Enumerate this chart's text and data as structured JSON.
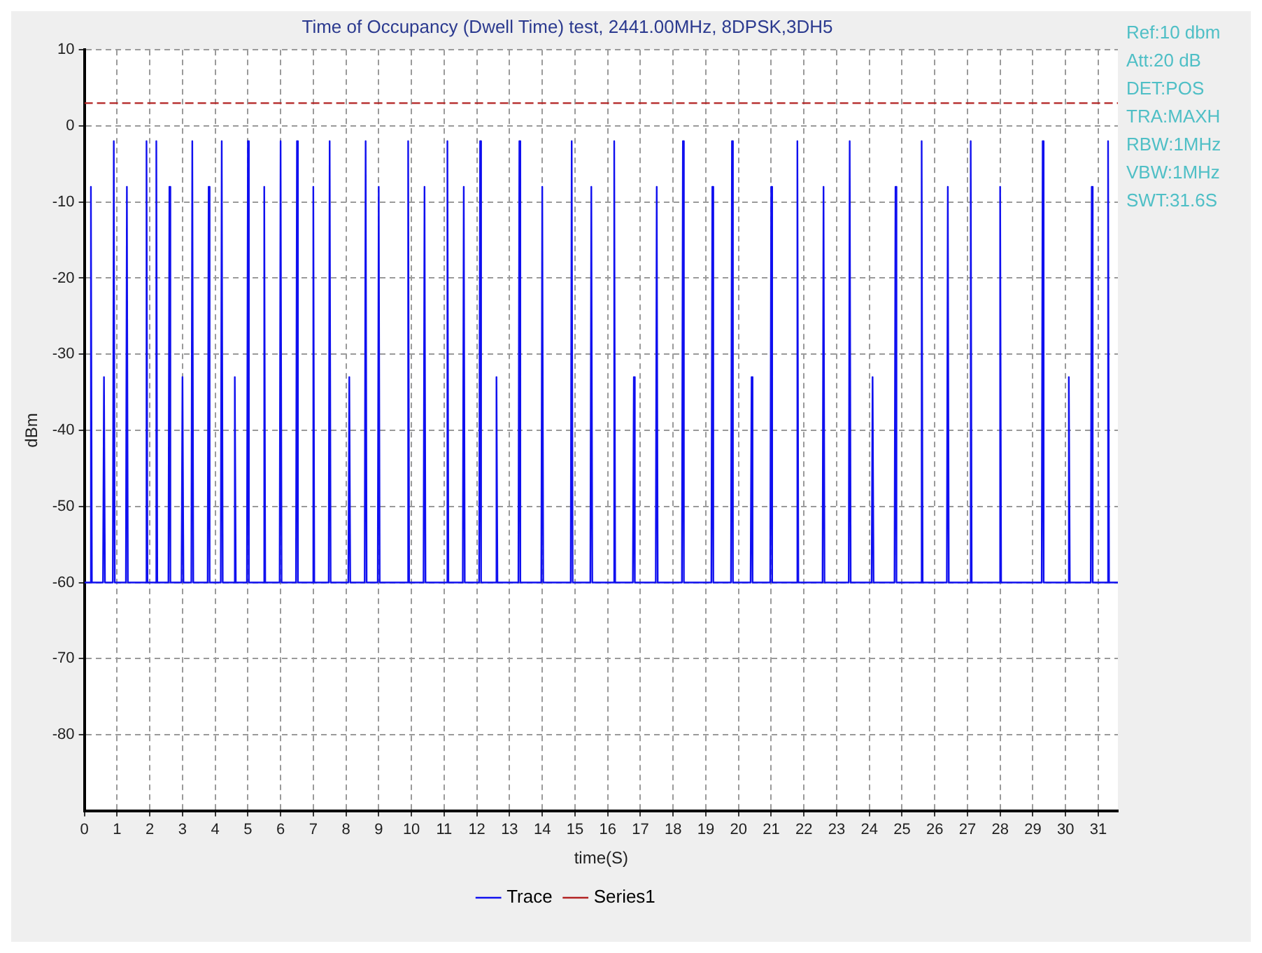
{
  "chart_data": {
    "type": "line",
    "title": "Time of Occupancy (Dwell Time) test, 2441.00MHz, 8DPSK,3DH5",
    "xlabel": "time(S)",
    "ylabel": "dBm",
    "xlim": [
      0,
      31.6
    ],
    "xticks": [
      0,
      1,
      2,
      3,
      4,
      5,
      6,
      7,
      8,
      9,
      10,
      11,
      12,
      13,
      14,
      15,
      16,
      17,
      18,
      19,
      20,
      21,
      22,
      23,
      24,
      25,
      26,
      27,
      28,
      29,
      30,
      31
    ],
    "ylim": [
      -90,
      10
    ],
    "yticks": [
      -80,
      -70,
      -60,
      -50,
      -40,
      -30,
      -20,
      -10,
      0,
      10
    ],
    "grid": true,
    "legend": "bottom",
    "marker": "none",
    "annotations": [
      "Ref:10 dbm",
      "Att:20 dB",
      "DET:POS",
      "TRA:MAXH",
      "RBW:1MHz",
      "VBW:1MHz",
      "SWT:31.6S"
    ],
    "series": [
      {
        "name": "Trace",
        "color": "#1010f0",
        "x": [
          0,
          0.17,
          0.2,
          0.23,
          0.57,
          0.6,
          0.63,
          0.87,
          0.9,
          0.93,
          1.27,
          1.3,
          1.33,
          1.87,
          1.9,
          1.93,
          2.17,
          2.2,
          2.23,
          2.57,
          2.6,
          2.63,
          2.97,
          3.0,
          3.03,
          3.27,
          3.3,
          3.33,
          3.77,
          3.8,
          3.83,
          4.17,
          4.2,
          4.23,
          4.57,
          4.6,
          4.63,
          4.97,
          5.0,
          5.03,
          5.47,
          5.5,
          5.53,
          5.97,
          6.0,
          6.03,
          6.47,
          6.5,
          6.53,
          6.97,
          7.0,
          7.03,
          7.47,
          7.5,
          7.53,
          8.07,
          8.1,
          8.13,
          8.57,
          8.6,
          8.63,
          8.97,
          9.0,
          9.03,
          9.87,
          9.9,
          9.93,
          10.37,
          10.4,
          10.43,
          11.07,
          11.1,
          11.13,
          11.57,
          11.6,
          11.63,
          12.07,
          12.1,
          12.13,
          12.57,
          12.6,
          12.63,
          13.27,
          13.3,
          13.33,
          13.97,
          14.0,
          14.03,
          14.87,
          14.9,
          14.93,
          15.47,
          15.5,
          15.53,
          16.17,
          16.2,
          16.23,
          16.77,
          16.8,
          16.83,
          17.47,
          17.5,
          17.53,
          18.27,
          18.3,
          18.33,
          19.17,
          19.2,
          19.23,
          19.77,
          19.8,
          19.83,
          20.37,
          20.4,
          20.43,
          20.97,
          21.0,
          21.03,
          21.77,
          21.8,
          21.83,
          22.57,
          22.6,
          22.63,
          23.37,
          23.4,
          23.43,
          24.07,
          24.1,
          24.13,
          24.77,
          24.8,
          24.83,
          25.57,
          25.6,
          25.63,
          26.37,
          26.4,
          26.43,
          27.07,
          27.1,
          27.13,
          27.97,
          28.0,
          28.03,
          29.27,
          29.3,
          29.33,
          30.07,
          30.1,
          30.13,
          30.77,
          30.8,
          30.83,
          31.27,
          31.3,
          31.33,
          31.6
        ],
        "values": [
          -60,
          -60,
          -8,
          -60,
          -60,
          -33,
          -60,
          -60,
          -2,
          -60,
          -60,
          -8,
          -60,
          -60,
          -2,
          -60,
          -60,
          -2,
          -60,
          -60,
          -8,
          -60,
          -60,
          -33,
          -60,
          -60,
          -2,
          -60,
          -60,
          -8,
          -60,
          -60,
          -2,
          -60,
          -60,
          -33,
          -60,
          -60,
          -2,
          -60,
          -60,
          -8,
          -60,
          -60,
          -2,
          -60,
          -60,
          -2,
          -60,
          -60,
          -8,
          -60,
          -60,
          -2,
          -60,
          -60,
          -33,
          -60,
          -60,
          -2,
          -60,
          -60,
          -8,
          -60,
          -60,
          -2,
          -60,
          -60,
          -8,
          -60,
          -60,
          -2,
          -60,
          -60,
          -8,
          -60,
          -60,
          -2,
          -60,
          -60,
          -33,
          -60,
          -60,
          -2,
          -60,
          -60,
          -8,
          -60,
          -60,
          -2,
          -60,
          -60,
          -8,
          -60,
          -60,
          -2,
          -60,
          -60,
          -33,
          -60,
          -60,
          -8,
          -60,
          -60,
          -2,
          -60,
          -60,
          -8,
          -60,
          -60,
          -2,
          -60,
          -60,
          -33,
          -60,
          -60,
          -8,
          -60,
          -60,
          -2,
          -60,
          -60,
          -8,
          -60,
          -60,
          -2,
          -60,
          -60,
          -33,
          -60,
          -60,
          -8,
          -60,
          -60,
          -2,
          -60,
          -60,
          -8,
          -60,
          -60,
          -2,
          -60,
          -60,
          -8,
          -60,
          -60,
          -2,
          -60,
          -60,
          -33,
          -60,
          -60,
          -8,
          -60,
          -60,
          -2,
          -60,
          -60
        ]
      },
      {
        "name": "Series1",
        "color": "#b22222",
        "line_style": "dashed",
        "x": [
          0,
          31.6
        ],
        "values": [
          3,
          3
        ]
      }
    ]
  }
}
